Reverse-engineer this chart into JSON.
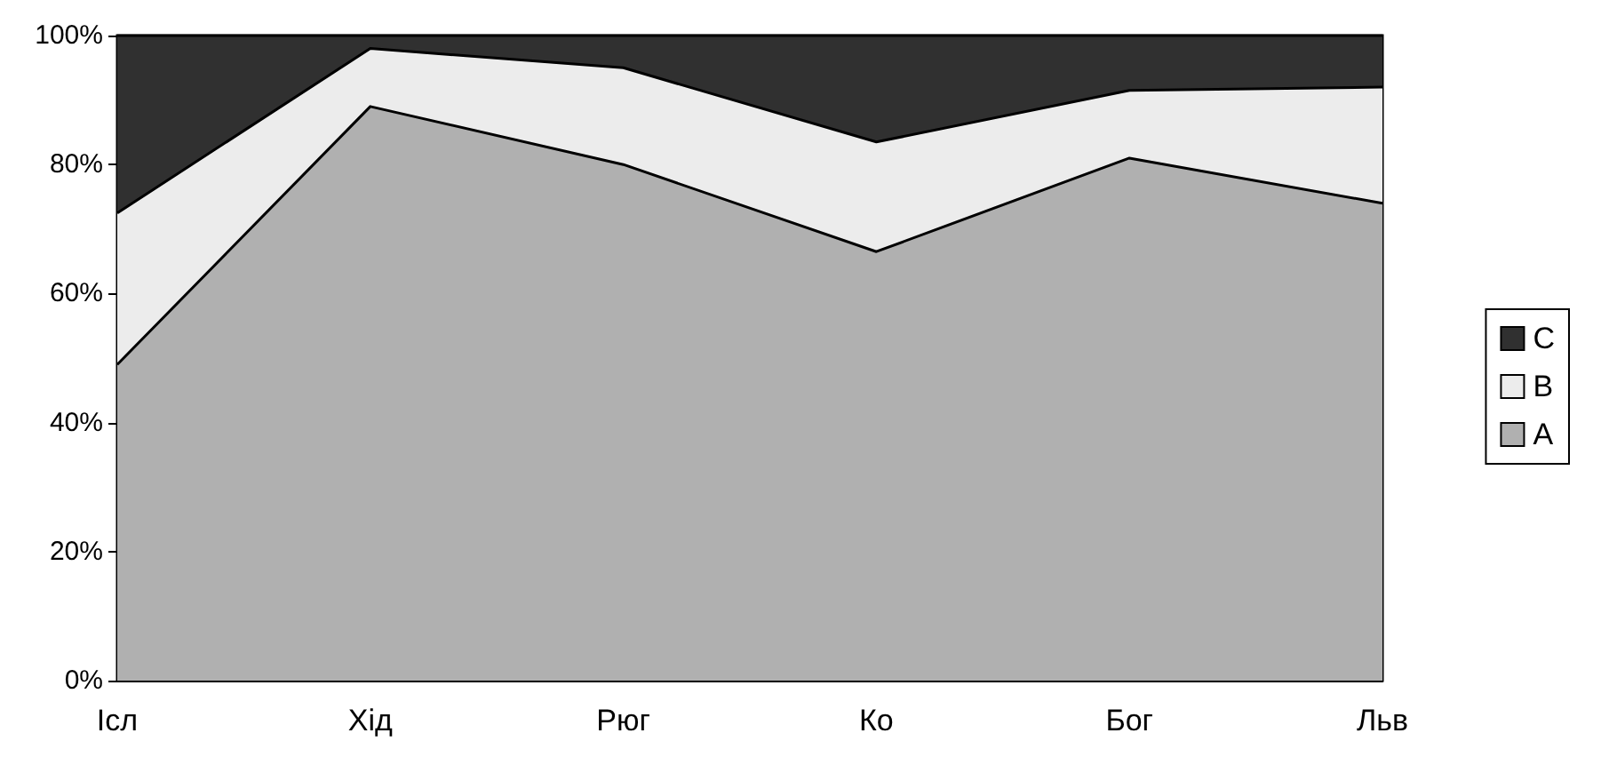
{
  "chart_data": {
    "type": "area",
    "stacked": true,
    "categories": [
      "Ісл",
      "Хід",
      "Рюг",
      "Ко",
      "Бог",
      "Льв"
    ],
    "series": [
      {
        "name": "A",
        "color": "#b0b0b0",
        "values": [
          49,
          89,
          80,
          66.5,
          81,
          74
        ]
      },
      {
        "name": "B",
        "color": "#ececec",
        "values": [
          23.5,
          9,
          15,
          17,
          10.5,
          18
        ]
      },
      {
        "name": "C",
        "color": "#303030",
        "values": [
          27.5,
          2,
          5,
          16.5,
          8.5,
          8
        ]
      }
    ],
    "ylim": [
      0,
      100
    ],
    "yticks": [
      {
        "value": 0,
        "label": "0%"
      },
      {
        "value": 20,
        "label": "20%"
      },
      {
        "value": 40,
        "label": "40%"
      },
      {
        "value": 60,
        "label": "60%"
      },
      {
        "value": 80,
        "label": "80%"
      },
      {
        "value": 100,
        "label": "100%"
      }
    ],
    "legend": "right",
    "grid": false
  }
}
